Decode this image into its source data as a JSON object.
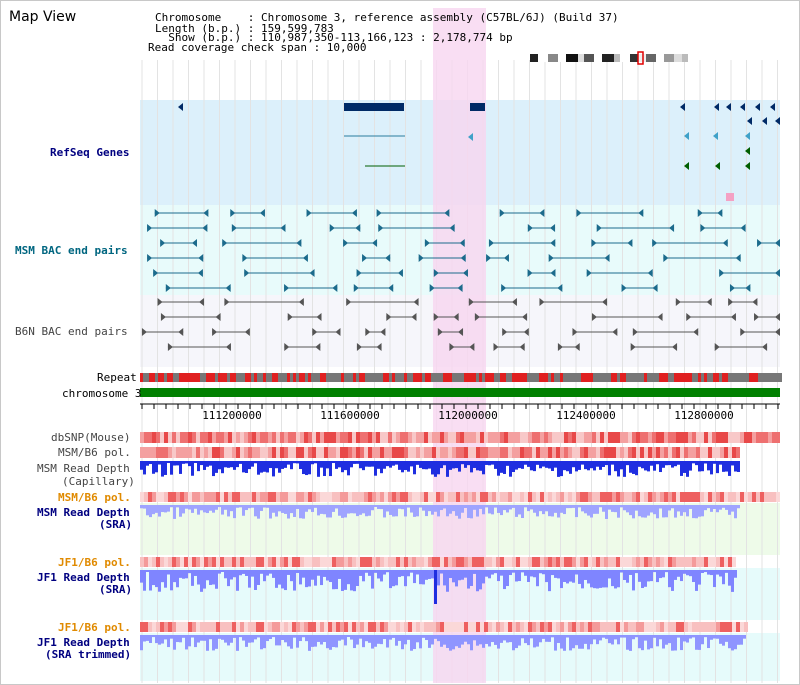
{
  "title": "Map View",
  "info": {
    "chromosome": "Chromosome    : Chromosome 3, reference assembly (C57BL/6J) (Build 37)",
    "length": "Length (b.p.) : 159,599,783",
    "show": "  Show (b.p.) : 110,987,350-113,166,123 : 2,178,774 bp",
    "coverage": "Read coverage check span : 10,000"
  },
  "ideogram_icon": "chromosome-ideogram-icon",
  "tracks": {
    "refseq": "RefSeq Genes",
    "msm_bac": "MSM BAC end pairs",
    "b6n_bac": "B6N BAC end pairs",
    "repeat": "Repeat",
    "chromosome": "chromosome 3",
    "dbsnp": "dbSNP(Mouse)",
    "msm_pol1": "MSM/B6 pol.",
    "msm_depth_cap_1": "MSM Read Depth",
    "msm_depth_cap_2": "(Capillary)",
    "msm_pol2": "MSM/B6 pol.",
    "msm_depth_sra_1": "MSM Read Depth",
    "msm_depth_sra_2": "(SRA)",
    "jf1_pol1": "JF1/B6 pol.",
    "jf1_depth_1": "JF1 Read Depth",
    "jf1_depth_2": "(SRA)",
    "jf1_pol2": "JF1/B6 pol.",
    "jf1_trim_1": "JF1 Read Depth",
    "jf1_trim_2": "(SRA trimmed)"
  },
  "axis": {
    "ticks": [
      "111200000",
      "111600000",
      "112000000",
      "112400000",
      "112800000"
    ]
  },
  "colors": {
    "refseq_bg": "#dcf0fb",
    "bac_bg": "#e8fbfb",
    "highlight": "#f7d6f0",
    "gene_dark": "#002a66",
    "gene_green": "#005e00",
    "msm_line": "#1c6b8c",
    "b6n_line": "#555555",
    "chromosome_bar": "#008000",
    "depth_dark": "#1f2ee0",
    "depth_light": "#7f85ff"
  }
}
